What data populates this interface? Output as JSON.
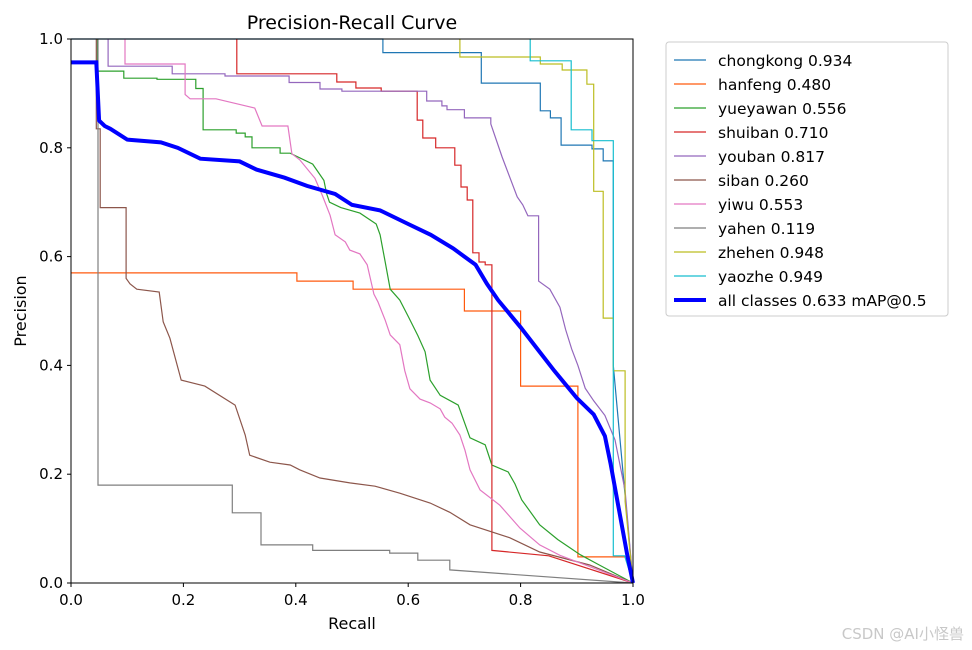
{
  "chart_data": {
    "type": "line",
    "title": "Precision-Recall Curve",
    "xlabel": "Recall",
    "ylabel": "Precision",
    "xlim": [
      0,
      1
    ],
    "ylim": [
      0,
      1
    ],
    "xticks": [
      "0.0",
      "0.2",
      "0.4",
      "0.6",
      "0.8",
      "1.0"
    ],
    "yticks": [
      "0.0",
      "0.2",
      "0.4",
      "0.6",
      "0.8",
      "1.0"
    ],
    "grid": false,
    "legend_position": "outside-right",
    "series": [
      {
        "name": "chongkong 0.934",
        "color": "#1f77b4",
        "width": 1.2,
        "points": [
          [
            0,
            1
          ],
          [
            0.555,
            1
          ],
          [
            0.555,
            0.975
          ],
          [
            0.73,
            0.975
          ],
          [
            0.73,
            0.919
          ],
          [
            0.835,
            0.919
          ],
          [
            0.835,
            0.868
          ],
          [
            0.853,
            0.868
          ],
          [
            0.853,
            0.855
          ],
          [
            0.872,
            0.855
          ],
          [
            0.872,
            0.805
          ],
          [
            0.927,
            0.805
          ],
          [
            0.927,
            0.798
          ],
          [
            0.947,
            0.798
          ],
          [
            0.947,
            0.776
          ],
          [
            0.965,
            0.776
          ],
          [
            0.965,
            0.4
          ],
          [
            1,
            0
          ]
        ]
      },
      {
        "name": "hanfeng 0.480",
        "color": "#ff5a0e",
        "width": 1.2,
        "points": [
          [
            0,
            0.57
          ],
          [
            0.402,
            0.57
          ],
          [
            0.402,
            0.555
          ],
          [
            0.502,
            0.555
          ],
          [
            0.502,
            0.54
          ],
          [
            0.7,
            0.54
          ],
          [
            0.7,
            0.5
          ],
          [
            0.8,
            0.5
          ],
          [
            0.8,
            0.362
          ],
          [
            0.902,
            0.362
          ],
          [
            0.902,
            0.048
          ],
          [
            0.995,
            0.048
          ],
          [
            1,
            0
          ]
        ]
      },
      {
        "name": "yueyawan 0.556",
        "color": "#2ca02c",
        "width": 1.2,
        "points": [
          [
            0.047,
            1
          ],
          [
            0.047,
            0.941
          ],
          [
            0.094,
            0.941
          ],
          [
            0.094,
            0.928
          ],
          [
            0.153,
            0.928
          ],
          [
            0.153,
            0.926
          ],
          [
            0.222,
            0.926
          ],
          [
            0.222,
            0.909
          ],
          [
            0.235,
            0.909
          ],
          [
            0.235,
            0.833
          ],
          [
            0.294,
            0.833
          ],
          [
            0.294,
            0.827
          ],
          [
            0.31,
            0.827
          ],
          [
            0.31,
            0.82
          ],
          [
            0.322,
            0.82
          ],
          [
            0.322,
            0.8
          ],
          [
            0.372,
            0.8
          ],
          [
            0.372,
            0.79
          ],
          [
            0.39,
            0.79
          ],
          [
            0.43,
            0.77
          ],
          [
            0.45,
            0.74
          ],
          [
            0.455,
            0.715
          ],
          [
            0.46,
            0.7
          ],
          [
            0.48,
            0.69
          ],
          [
            0.514,
            0.68
          ],
          [
            0.543,
            0.66
          ],
          [
            0.55,
            0.64
          ],
          [
            0.559,
            0.59
          ],
          [
            0.568,
            0.54
          ],
          [
            0.585,
            0.52
          ],
          [
            0.6,
            0.49
          ],
          [
            0.617,
            0.455
          ],
          [
            0.63,
            0.425
          ],
          [
            0.639,
            0.373
          ],
          [
            0.657,
            0.345
          ],
          [
            0.689,
            0.327
          ],
          [
            0.71,
            0.267
          ],
          [
            0.737,
            0.254
          ],
          [
            0.749,
            0.217
          ],
          [
            0.778,
            0.204
          ],
          [
            0.79,
            0.182
          ],
          [
            0.802,
            0.153
          ],
          [
            0.834,
            0.107
          ],
          [
            0.866,
            0.08
          ],
          [
            0.906,
            0.052
          ],
          [
            0.94,
            0.033
          ],
          [
            1,
            0
          ]
        ]
      },
      {
        "name": "shuiban 0.710",
        "color": "#d62728",
        "width": 1.2,
        "points": [
          [
            0.295,
            1
          ],
          [
            0.295,
            0.936
          ],
          [
            0.473,
            0.936
          ],
          [
            0.473,
            0.921
          ],
          [
            0.507,
            0.921
          ],
          [
            0.507,
            0.91
          ],
          [
            0.552,
            0.91
          ],
          [
            0.552,
            0.904
          ],
          [
            0.616,
            0.904
          ],
          [
            0.616,
            0.851
          ],
          [
            0.626,
            0.851
          ],
          [
            0.626,
            0.818
          ],
          [
            0.649,
            0.818
          ],
          [
            0.649,
            0.8
          ],
          [
            0.683,
            0.8
          ],
          [
            0.683,
            0.768
          ],
          [
            0.694,
            0.768
          ],
          [
            0.694,
            0.728
          ],
          [
            0.705,
            0.728
          ],
          [
            0.705,
            0.704
          ],
          [
            0.715,
            0.704
          ],
          [
            0.715,
            0.607
          ],
          [
            0.726,
            0.607
          ],
          [
            0.726,
            0.59
          ],
          [
            0.737,
            0.59
          ],
          [
            0.737,
            0.585
          ],
          [
            0.749,
            0.585
          ],
          [
            0.749,
            0.06
          ],
          [
            0.85,
            0.05
          ],
          [
            1,
            0
          ]
        ]
      },
      {
        "name": "youban 0.817",
        "color": "#9467bd",
        "width": 1.2,
        "points": [
          [
            0.066,
            1
          ],
          [
            0.066,
            0.95
          ],
          [
            0.18,
            0.95
          ],
          [
            0.18,
            0.936
          ],
          [
            0.274,
            0.936
          ],
          [
            0.274,
            0.932
          ],
          [
            0.388,
            0.932
          ],
          [
            0.388,
            0.92
          ],
          [
            0.443,
            0.92
          ],
          [
            0.443,
            0.908
          ],
          [
            0.482,
            0.908
          ],
          [
            0.482,
            0.904
          ],
          [
            0.633,
            0.904
          ],
          [
            0.633,
            0.886
          ],
          [
            0.66,
            0.886
          ],
          [
            0.66,
            0.877
          ],
          [
            0.669,
            0.877
          ],
          [
            0.669,
            0.87
          ],
          [
            0.7,
            0.87
          ],
          [
            0.7,
            0.855
          ],
          [
            0.747,
            0.855
          ],
          [
            0.747,
            0.844
          ],
          [
            0.767,
            0.783
          ],
          [
            0.794,
            0.71
          ],
          [
            0.804,
            0.695
          ],
          [
            0.813,
            0.675
          ],
          [
            0.832,
            0.675
          ],
          [
            0.832,
            0.555
          ],
          [
            0.852,
            0.54
          ],
          [
            0.87,
            0.507
          ],
          [
            0.88,
            0.466
          ],
          [
            0.891,
            0.43
          ],
          [
            0.902,
            0.4
          ],
          [
            0.915,
            0.358
          ],
          [
            0.93,
            0.335
          ],
          [
            0.95,
            0.308
          ],
          [
            0.968,
            0.263
          ],
          [
            0.986,
            0.17
          ],
          [
            1,
            0
          ]
        ]
      },
      {
        "name": "siban 0.260",
        "color": "#8c564b",
        "width": 1.2,
        "points": [
          [
            0.045,
            1
          ],
          [
            0.045,
            0.835
          ],
          [
            0.052,
            0.835
          ],
          [
            0.052,
            0.69
          ],
          [
            0.098,
            0.69
          ],
          [
            0.098,
            0.56
          ],
          [
            0.105,
            0.55
          ],
          [
            0.117,
            0.54
          ],
          [
            0.157,
            0.535
          ],
          [
            0.164,
            0.48
          ],
          [
            0.176,
            0.45
          ],
          [
            0.196,
            0.373
          ],
          [
            0.238,
            0.362
          ],
          [
            0.292,
            0.327
          ],
          [
            0.31,
            0.272
          ],
          [
            0.318,
            0.235
          ],
          [
            0.354,
            0.222
          ],
          [
            0.39,
            0.217
          ],
          [
            0.407,
            0.208
          ],
          [
            0.443,
            0.193
          ],
          [
            0.496,
            0.184
          ],
          [
            0.541,
            0.178
          ],
          [
            0.585,
            0.165
          ],
          [
            0.639,
            0.147
          ],
          [
            0.674,
            0.13
          ],
          [
            0.71,
            0.107
          ],
          [
            0.781,
            0.083
          ],
          [
            0.834,
            0.057
          ],
          [
            0.923,
            0.033
          ],
          [
            1,
            0
          ]
        ]
      },
      {
        "name": "yiwu 0.553",
        "color": "#e377c2",
        "width": 1.2,
        "points": [
          [
            0.096,
            1
          ],
          [
            0.096,
            0.954
          ],
          [
            0.203,
            0.954
          ],
          [
            0.203,
            0.898
          ],
          [
            0.212,
            0.89
          ],
          [
            0.258,
            0.89
          ],
          [
            0.327,
            0.873
          ],
          [
            0.34,
            0.84
          ],
          [
            0.386,
            0.84
          ],
          [
            0.393,
            0.789
          ],
          [
            0.407,
            0.778
          ],
          [
            0.434,
            0.744
          ],
          [
            0.447,
            0.713
          ],
          [
            0.461,
            0.676
          ],
          [
            0.47,
            0.64
          ],
          [
            0.488,
            0.627
          ],
          [
            0.496,
            0.612
          ],
          [
            0.514,
            0.605
          ],
          [
            0.527,
            0.585
          ],
          [
            0.539,
            0.531
          ],
          [
            0.546,
            0.517
          ],
          [
            0.559,
            0.483
          ],
          [
            0.568,
            0.456
          ],
          [
            0.585,
            0.438
          ],
          [
            0.594,
            0.39
          ],
          [
            0.603,
            0.357
          ],
          [
            0.621,
            0.338
          ],
          [
            0.639,
            0.331
          ],
          [
            0.657,
            0.32
          ],
          [
            0.665,
            0.305
          ],
          [
            0.678,
            0.294
          ],
          [
            0.692,
            0.272
          ],
          [
            0.701,
            0.244
          ],
          [
            0.71,
            0.208
          ],
          [
            0.728,
            0.171
          ],
          [
            0.763,
            0.143
          ],
          [
            0.799,
            0.101
          ],
          [
            0.834,
            0.07
          ],
          [
            0.87,
            0.051
          ],
          [
            1,
            0
          ]
        ]
      },
      {
        "name": "yahen 0.119",
        "color": "#7f7f7f",
        "width": 1.2,
        "points": [
          [
            0.048,
            1
          ],
          [
            0.048,
            0.18
          ],
          [
            0.287,
            0.18
          ],
          [
            0.287,
            0.129
          ],
          [
            0.338,
            0.129
          ],
          [
            0.338,
            0.07
          ],
          [
            0.43,
            0.07
          ],
          [
            0.43,
            0.06
          ],
          [
            0.567,
            0.06
          ],
          [
            0.567,
            0.055
          ],
          [
            0.617,
            0.055
          ],
          [
            0.617,
            0.042
          ],
          [
            0.674,
            0.042
          ],
          [
            0.674,
            0.024
          ],
          [
            1,
            0
          ]
        ]
      },
      {
        "name": "zhehen 0.948",
        "color": "#bcbd22",
        "width": 1.2,
        "points": [
          [
            0.692,
            1
          ],
          [
            0.692,
            0.967
          ],
          [
            0.835,
            0.967
          ],
          [
            0.835,
            0.954
          ],
          [
            0.874,
            0.954
          ],
          [
            0.874,
            0.943
          ],
          [
            0.918,
            0.943
          ],
          [
            0.918,
            0.917
          ],
          [
            0.93,
            0.917
          ],
          [
            0.93,
            0.72
          ],
          [
            0.947,
            0.72
          ],
          [
            0.947,
            0.487
          ],
          [
            0.965,
            0.487
          ],
          [
            0.965,
            0.39
          ],
          [
            0.986,
            0.39
          ],
          [
            0.986,
            0.15
          ],
          [
            1,
            0
          ]
        ]
      },
      {
        "name": "yaozhe 0.949",
        "color": "#17becf",
        "width": 1.2,
        "points": [
          [
            0.817,
            1
          ],
          [
            0.817,
            0.96
          ],
          [
            0.89,
            0.96
          ],
          [
            0.89,
            0.833
          ],
          [
            0.927,
            0.833
          ],
          [
            0.927,
            0.813
          ],
          [
            0.965,
            0.813
          ],
          [
            0.965,
            0.05
          ],
          [
            0.985,
            0.05
          ],
          [
            1,
            0
          ]
        ]
      },
      {
        "name": "all classes 0.633 mAP@0.5",
        "color": "#0000ff",
        "width": 4,
        "points": [
          [
            0,
            0.957
          ],
          [
            0.045,
            0.957
          ],
          [
            0.05,
            0.85
          ],
          [
            0.06,
            0.84
          ],
          [
            0.07,
            0.835
          ],
          [
            0.1,
            0.815
          ],
          [
            0.16,
            0.81
          ],
          [
            0.19,
            0.8
          ],
          [
            0.23,
            0.78
          ],
          [
            0.3,
            0.775
          ],
          [
            0.33,
            0.76
          ],
          [
            0.38,
            0.745
          ],
          [
            0.42,
            0.73
          ],
          [
            0.47,
            0.715
          ],
          [
            0.5,
            0.695
          ],
          [
            0.55,
            0.685
          ],
          [
            0.6,
            0.66
          ],
          [
            0.64,
            0.64
          ],
          [
            0.68,
            0.615
          ],
          [
            0.7,
            0.6
          ],
          [
            0.72,
            0.585
          ],
          [
            0.74,
            0.55
          ],
          [
            0.76,
            0.52
          ],
          [
            0.8,
            0.47
          ],
          [
            0.83,
            0.43
          ],
          [
            0.86,
            0.39
          ],
          [
            0.9,
            0.34
          ],
          [
            0.93,
            0.31
          ],
          [
            0.95,
            0.27
          ],
          [
            0.96,
            0.22
          ],
          [
            0.99,
            0.05
          ],
          [
            1,
            0
          ]
        ]
      }
    ]
  },
  "watermark": "CSDN @AI小怪兽"
}
